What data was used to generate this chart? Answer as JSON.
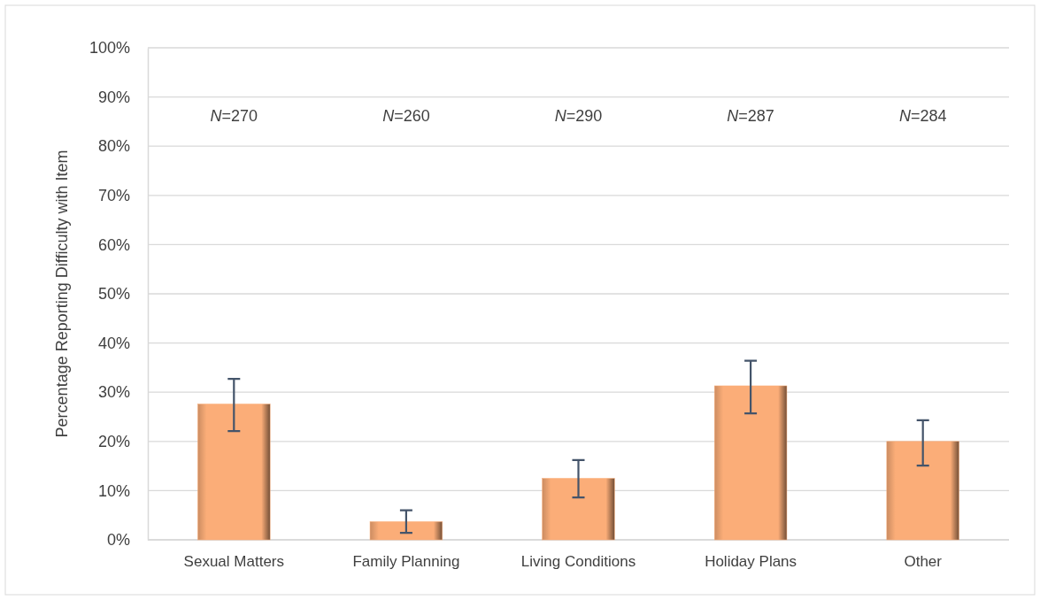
{
  "chart_data": {
    "type": "bar",
    "ylabel": "Percentage Reporting Difficulty with Item",
    "categories": [
      "Sexual Matters",
      "Family Planning",
      "Living Conditions",
      "Holiday Plans",
      "Other"
    ],
    "values": [
      27.6,
      3.7,
      12.5,
      31.3,
      20.0
    ],
    "errors": [
      [
        22.1,
        32.7
      ],
      [
        1.4,
        6.0
      ],
      [
        8.6,
        16.2
      ],
      [
        25.7,
        36.4
      ],
      [
        15.1,
        24.3
      ]
    ],
    "color": "#fbad78",
    "ylim": [
      0,
      100
    ],
    "yticks": [
      {
        "value": 0,
        "label": "0%"
      },
      {
        "value": 10,
        "label": "10%"
      },
      {
        "value": 20,
        "label": "20%"
      },
      {
        "value": 30,
        "label": "30%"
      },
      {
        "value": 40,
        "label": "40%"
      },
      {
        "value": 50,
        "label": "50%"
      },
      {
        "value": 60,
        "label": "60%"
      },
      {
        "value": 70,
        "label": "70%"
      },
      {
        "value": 80,
        "label": "80%"
      },
      {
        "value": 90,
        "label": "90%"
      },
      {
        "value": 100,
        "label": "100%"
      }
    ],
    "grid": "y",
    "annotations": [
      "N=270",
      "N=260",
      "N=290",
      "N=287",
      "N=284"
    ]
  }
}
